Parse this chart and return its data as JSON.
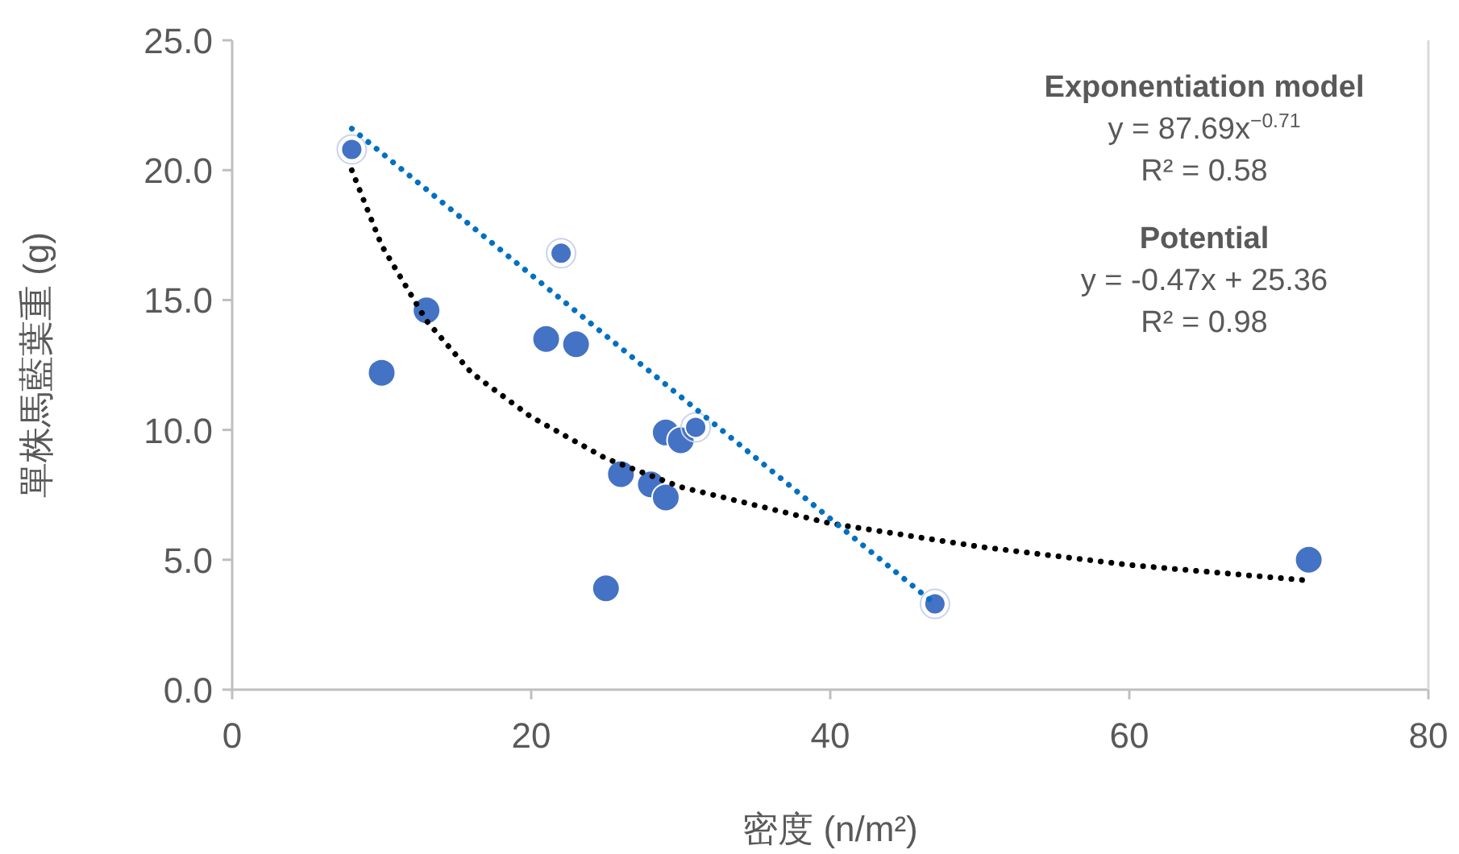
{
  "chart_data": {
    "type": "scatter",
    "xlabel": "密度 (n/m²)",
    "ylabel": "單株馬藍葉重 (g)",
    "xlim": [
      0,
      80
    ],
    "xticks": [
      0,
      20,
      40,
      60,
      80
    ],
    "ylim": [
      0,
      25
    ],
    "yticks": [
      {
        "value": 0,
        "label": "0.0"
      },
      {
        "value": 5,
        "label": "5.0"
      },
      {
        "value": 10,
        "label": "10.0"
      },
      {
        "value": 15,
        "label": "15.0"
      },
      {
        "value": 20,
        "label": "20.0"
      },
      {
        "value": 25,
        "label": "25.0"
      }
    ],
    "grid": false,
    "series": [
      {
        "color": "#4472c4",
        "marker": "circle",
        "x": [
          10,
          13,
          21,
          23,
          29,
          30,
          26,
          28,
          29,
          25,
          72
        ],
        "values": [
          12.2,
          14.6,
          13.5,
          13.3,
          9.9,
          9.6,
          8.3,
          7.9,
          7.4,
          3.9,
          5.0
        ]
      },
      {
        "color": "#4472c4",
        "marker": "circle",
        "x": [
          8,
          22,
          31,
          47
        ],
        "values": [
          20.8,
          16.8,
          10.1,
          3.3
        ]
      },
      {
        "type": "line",
        "color": "#000000",
        "line_style": "dotted",
        "x": [
          8,
          10,
          13,
          16,
          20,
          25,
          30,
          40,
          50,
          60,
          72
        ],
        "values": [
          20.0,
          17.1,
          14.2,
          12.2,
          10.5,
          8.9,
          7.8,
          6.4,
          5.5,
          4.8,
          4.2
        ]
      },
      {
        "type": "line",
        "color": "#0070c0",
        "line_style": "dotted",
        "x": [
          8,
          47
        ],
        "values": [
          21.6,
          3.3
        ]
      }
    ],
    "annotations": [
      "Exponentiation model",
      "y = 87.69x$^{−0.71}$",
      "R² = 0.58",
      "Potential",
      "y = -0.47x + 25.36",
      "R² = 0.98"
    ]
  }
}
